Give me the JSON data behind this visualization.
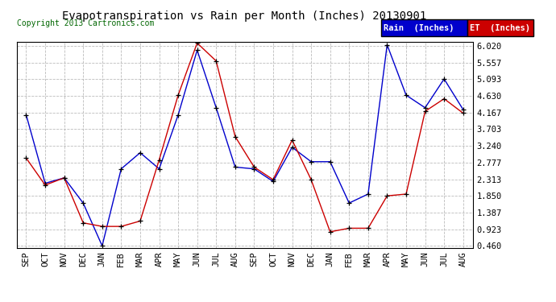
{
  "title": "Evapotranspiration vs Rain per Month (Inches) 20130901",
  "copyright": "Copyright 2013 Cartronics.com",
  "months": [
    "SEP",
    "OCT",
    "NOV",
    "DEC",
    "JAN",
    "FEB",
    "MAR",
    "APR",
    "MAY",
    "JUN",
    "JUL",
    "AUG",
    "SEP",
    "OCT",
    "NOV",
    "DEC",
    "JAN",
    "FEB",
    "MAR",
    "APR",
    "MAY",
    "JUN",
    "JUL",
    "AUG"
  ],
  "rain": [
    4.1,
    2.2,
    2.35,
    1.65,
    0.46,
    2.6,
    3.05,
    2.6,
    4.1,
    5.9,
    4.3,
    2.65,
    2.6,
    2.25,
    3.2,
    2.8,
    2.8,
    1.65,
    1.9,
    6.05,
    4.65,
    4.3,
    5.1,
    4.25
  ],
  "et": [
    2.9,
    2.15,
    2.35,
    1.1,
    1.0,
    1.0,
    1.15,
    2.85,
    4.65,
    6.1,
    5.6,
    3.5,
    2.65,
    2.3,
    3.4,
    2.3,
    0.85,
    0.95,
    0.95,
    1.85,
    1.9,
    4.2,
    4.55,
    4.15
  ],
  "rain_color": "#0000cc",
  "et_color": "#cc0000",
  "marker_color": "#000000",
  "bg_color": "#ffffff",
  "plot_bg_color": "#ffffff",
  "grid_color": "#aaaaaa",
  "title_fontsize": 10,
  "copyright_fontsize": 7,
  "tick_fontsize": 7.5,
  "legend_rain_label": "Rain  (Inches)",
  "legend_et_label": "ET  (Inches)",
  "legend_rain_bg": "#0000cc",
  "legend_et_bg": "#cc0000",
  "yticks": [
    0.46,
    0.923,
    1.387,
    1.85,
    2.313,
    2.777,
    3.24,
    3.703,
    4.167,
    4.63,
    5.093,
    5.557,
    6.02
  ],
  "ymin": 0.46,
  "ymax": 6.02
}
